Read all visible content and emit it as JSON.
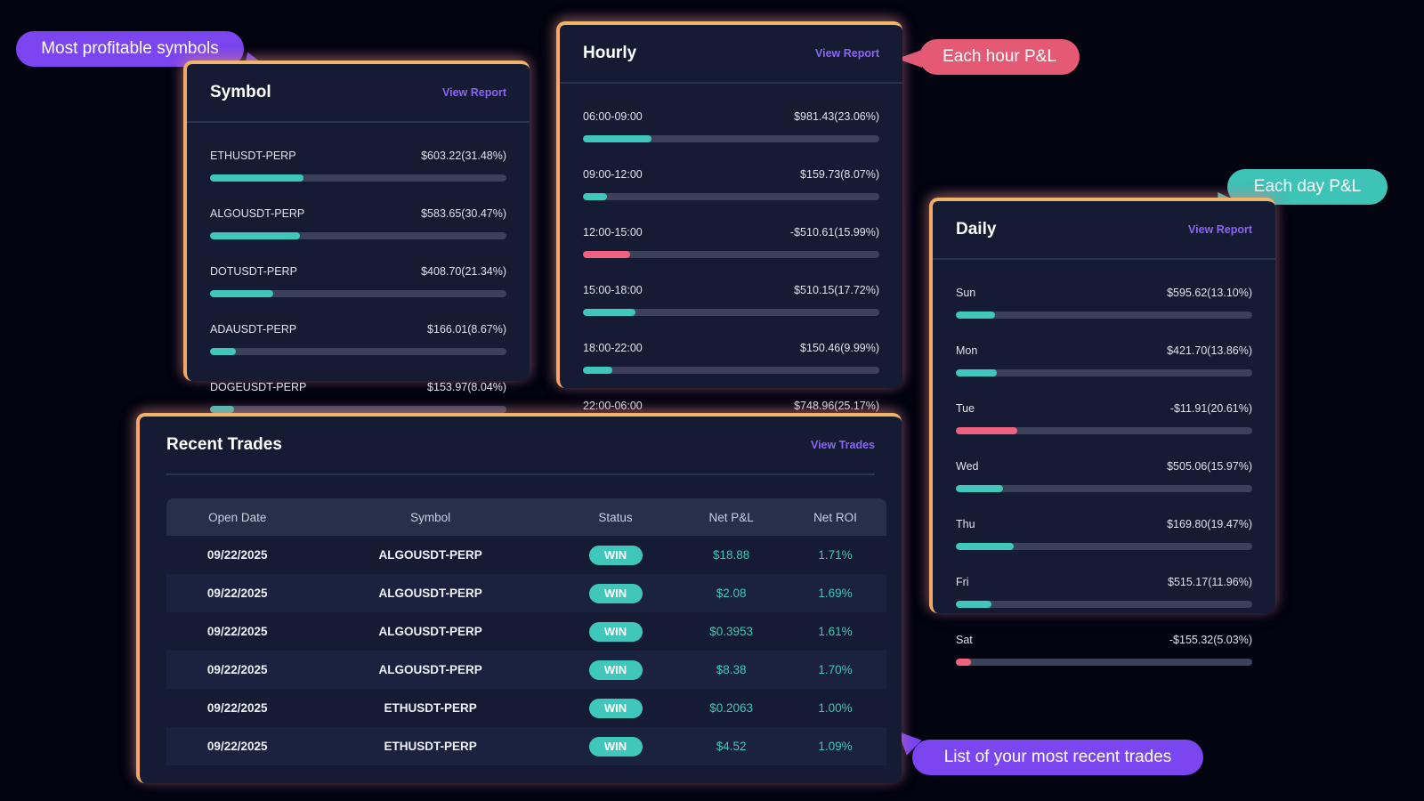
{
  "callouts": {
    "symbols": "Most profitable symbols",
    "hourly": "Each hour P&L",
    "daily": "Each day P&L",
    "trades": "List of your most recent trades"
  },
  "colors": {
    "accent_purple": "#7b45ef",
    "positive": "#3ec7ba",
    "negative": "#f0607f",
    "card_bg": "#141b33"
  },
  "symbol_card": {
    "title": "Symbol",
    "link": "View Report",
    "rows": [
      {
        "label": "ETHUSDT-PERP",
        "value": "$603.22(31.48%)",
        "fill": 0.3148,
        "negative": false
      },
      {
        "label": "ALGOUSDT-PERP",
        "value": "$583.65(30.47%)",
        "fill": 0.3047,
        "negative": false
      },
      {
        "label": "DOTUSDT-PERP",
        "value": "$408.70(21.34%)",
        "fill": 0.2134,
        "negative": false
      },
      {
        "label": "ADAUSDT-PERP",
        "value": "$166.01(8.67%)",
        "fill": 0.0867,
        "negative": false
      },
      {
        "label": "DOGEUSDT-PERP",
        "value": "$153.97(8.04%)",
        "fill": 0.0804,
        "negative": false
      }
    ]
  },
  "hourly_card": {
    "title": "Hourly",
    "link": "View Report",
    "rows": [
      {
        "label": "06:00-09:00",
        "value": "$981.43(23.06%)",
        "fill": 0.2306,
        "negative": false
      },
      {
        "label": "09:00-12:00",
        "value": "$159.73(8.07%)",
        "fill": 0.0807,
        "negative": false
      },
      {
        "label": "12:00-15:00",
        "value": "-$510.61(15.99%)",
        "fill": 0.1599,
        "negative": true
      },
      {
        "label": "15:00-18:00",
        "value": "$510.15(17.72%)",
        "fill": 0.1772,
        "negative": false
      },
      {
        "label": "18:00-22:00",
        "value": "$150.46(9.99%)",
        "fill": 0.0999,
        "negative": false
      },
      {
        "label": "22:00-06:00",
        "value": "$748.96(25.17%)",
        "fill": 0.2517,
        "negative": false
      }
    ]
  },
  "daily_card": {
    "title": "Daily",
    "link": "View Report",
    "rows": [
      {
        "label": "Sun",
        "value": "$595.62(13.10%)",
        "fill": 0.131,
        "negative": false
      },
      {
        "label": "Mon",
        "value": "$421.70(13.86%)",
        "fill": 0.1386,
        "negative": false
      },
      {
        "label": "Tue",
        "value": "-$11.91(20.61%)",
        "fill": 0.2061,
        "negative": true
      },
      {
        "label": "Wed",
        "value": "$505.06(15.97%)",
        "fill": 0.1597,
        "negative": false
      },
      {
        "label": "Thu",
        "value": "$169.80(19.47%)",
        "fill": 0.1947,
        "negative": false
      },
      {
        "label": "Fri",
        "value": "$515.17(11.96%)",
        "fill": 0.1196,
        "negative": false
      },
      {
        "label": "Sat",
        "value": "-$155.32(5.03%)",
        "fill": 0.0503,
        "negative": true
      }
    ]
  },
  "trades_card": {
    "title": "Recent Trades",
    "link": "View Trades",
    "columns": [
      "Open Date",
      "Symbol",
      "Status",
      "Net P&L",
      "Net ROI"
    ],
    "rows": [
      {
        "date": "09/22/2025",
        "symbol": "ALGOUSDT-PERP",
        "status": "WIN",
        "pnl": "$18.88",
        "roi": "1.71%"
      },
      {
        "date": "09/22/2025",
        "symbol": "ALGOUSDT-PERP",
        "status": "WIN",
        "pnl": "$2.08",
        "roi": "1.69%"
      },
      {
        "date": "09/22/2025",
        "symbol": "ALGOUSDT-PERP",
        "status": "WIN",
        "pnl": "$0.3953",
        "roi": "1.61%"
      },
      {
        "date": "09/22/2025",
        "symbol": "ALGOUSDT-PERP",
        "status": "WIN",
        "pnl": "$8.38",
        "roi": "1.70%"
      },
      {
        "date": "09/22/2025",
        "symbol": "ETHUSDT-PERP",
        "status": "WIN",
        "pnl": "$0.2063",
        "roi": "1.00%"
      },
      {
        "date": "09/22/2025",
        "symbol": "ETHUSDT-PERP",
        "status": "WIN",
        "pnl": "$4.52",
        "roi": "1.09%"
      }
    ]
  }
}
